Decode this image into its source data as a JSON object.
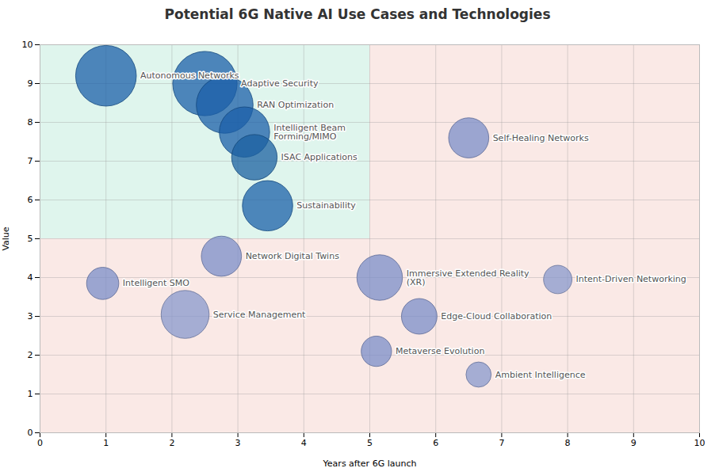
{
  "chart_data": {
    "type": "bubble",
    "title": "Potential 6G Native AI Use Cases and Technologies",
    "xlabel": "Years after 6G launch",
    "ylabel": "Value",
    "xlim": [
      0,
      10
    ],
    "ylim": [
      0,
      10
    ],
    "xticks": [
      0,
      1,
      2,
      3,
      4,
      5,
      6,
      7,
      8,
      9,
      10
    ],
    "yticks": [
      0,
      1,
      2,
      3,
      4,
      5,
      6,
      7,
      8,
      9,
      10
    ],
    "grid": true,
    "regions": [
      {
        "x1": 0,
        "x2": 5,
        "y1": 5,
        "y2": 10,
        "color": "#b8e8d8"
      },
      {
        "x1": 0,
        "x2": 10,
        "y1": 0,
        "y2": 5,
        "color": "#f5cfc8"
      },
      {
        "x1": 5,
        "x2": 10,
        "y1": 5,
        "y2": 10,
        "color": "#f5cfc8"
      }
    ],
    "names": [
      "Autonomous Networks",
      "Adaptive Security",
      "RAN Optimization",
      "Intelligent Beam\nForming/MIMO",
      "ISAC Applications",
      "Sustainability",
      "Network Digital Twins",
      "Intelligent SMO",
      "Service Management",
      "Self-Healing Networks",
      "Immersive Extended Reality\n(XR)",
      "Intent-Driven Networking",
      "Edge-Cloud Collaboration",
      "Metaverse Evolution",
      "Ambient Intelligence"
    ],
    "x": [
      1.0,
      2.5,
      2.8,
      3.1,
      3.25,
      3.45,
      2.75,
      0.95,
      2.2,
      6.5,
      5.15,
      7.85,
      5.75,
      5.1,
      6.65
    ],
    "y": [
      9.2,
      9.0,
      8.45,
      7.75,
      7.1,
      5.85,
      4.55,
      3.85,
      3.05,
      7.6,
      4.0,
      3.95,
      3.0,
      2.1,
      1.5
    ],
    "sizes": [
      3200,
      3600,
      2800,
      2200,
      1800,
      2200,
      1400,
      900,
      2000,
      1400,
      1800,
      700,
      1100,
      800,
      550
    ],
    "colors": [
      "#1b5fa8",
      "#1b5fa8",
      "#1b5fa8",
      "#1b5fa8",
      "#1b60a0",
      "#1b60a8",
      "#7b8dc8",
      "#7b8dc8",
      "#8898cc",
      "#7b8dc8",
      "#7b8dc8",
      "#8898cc",
      "#7b8dc8",
      "#7b8dc8",
      "#8898cc"
    ]
  }
}
